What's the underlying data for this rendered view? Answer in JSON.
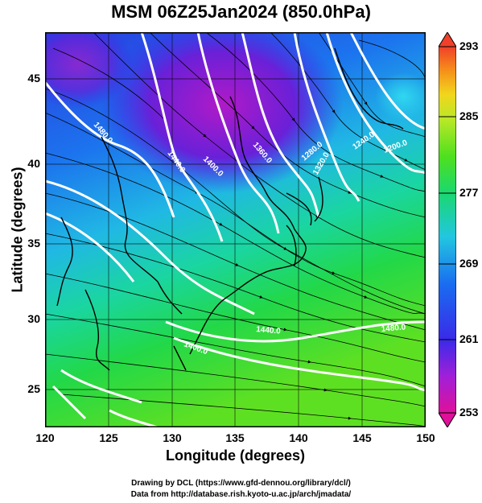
{
  "title": "MSM 06Z25Jan2024 (850.0hPa)",
  "map": {
    "xlabel": "Longitude (degrees)",
    "ylabel": "Latitude  (degrees)",
    "xticks": [
      "120",
      "125",
      "130",
      "135",
      "140",
      "145",
      "150"
    ],
    "yticks": [
      "45",
      "40",
      "35",
      "30",
      "25"
    ],
    "xlim": [
      120,
      150
    ],
    "ylim": [
      22.4,
      47.6
    ],
    "contour_labels": [
      "1480.0",
      "1440.0",
      "1400.0",
      "1360.0",
      "1320.0",
      "1280.0",
      "1240.0",
      "1200.0",
      "1440.0",
      "1480.0",
      "1400.0"
    ],
    "colorbar": {
      "ticks": [
        "293",
        "285",
        "277",
        "269",
        "261",
        "253"
      ],
      "range": [
        253,
        293
      ],
      "colors": [
        "#e0109a",
        "#a020d8",
        "#3a2ae8",
        "#1a6cf0",
        "#22c6e0",
        "#1ad870",
        "#4ee01e",
        "#b8e828",
        "#f2d61c",
        "#f58a1a",
        "#f0402a"
      ]
    }
  },
  "credits": {
    "line1": "Drawing by DCL (https://www.gfd-dennou.org/library/dcl/)",
    "line2": "Data from http://database.rish.kyoto-u.ac.jp/arch/jmadata/"
  }
}
